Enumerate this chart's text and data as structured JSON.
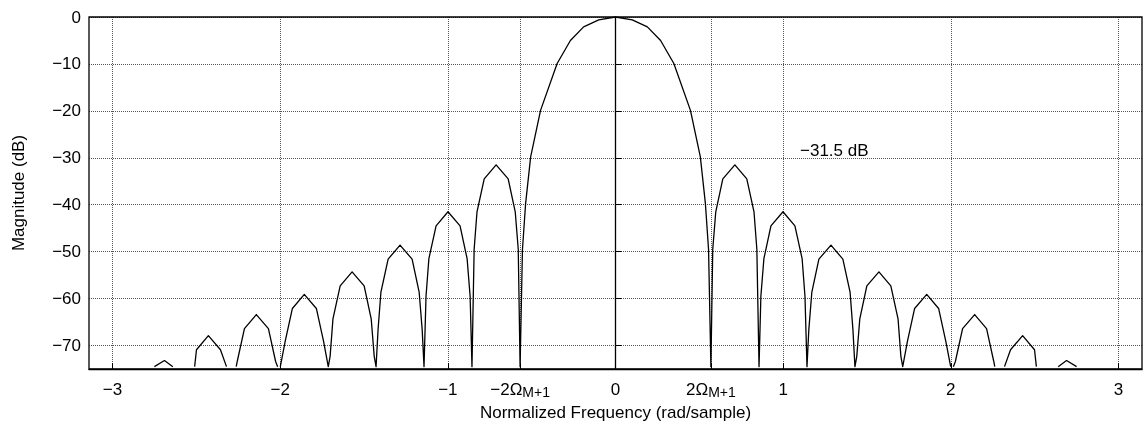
{
  "chart_data": {
    "type": "line",
    "xlabel": "Normalized Frequency (rad/sample)",
    "ylabel": "Magnitude (dB)",
    "annotations": [
      "−31.5 dB"
    ],
    "x": [
      -2.75,
      -2.69,
      -2.64,
      -2.575,
      -2.51,
      -2.499,
      -2.428,
      -2.356,
      -2.32,
      -2.291,
      -2.262,
      -2.256,
      -2.213,
      -2.142,
      -2.07,
      -2.027,
      -2.015,
      -2.007,
      -1.999,
      -1.97,
      -1.927,
      -1.856,
      -1.784,
      -1.741,
      -1.713,
      -1.702,
      -1.685,
      -1.642,
      -1.571,
      -1.499,
      -1.457,
      -1.439,
      -1.428,
      -1.416,
      -1.399,
      -1.356,
      -1.285,
      -1.213,
      -1.171,
      -1.153,
      -1.142,
      -1.13,
      -1.113,
      -1.07,
      -0.999,
      -0.927,
      -0.885,
      -0.867,
      -0.856,
      -0.843,
      -0.826,
      -0.783,
      -0.712,
      -0.64,
      -0.598,
      -0.58,
      -0.569,
      -0.555,
      -0.536,
      -0.506,
      -0.447,
      -0.348,
      -0.269,
      -0.19,
      -0.1,
      0,
      0.1,
      0.19,
      0.269,
      0.348,
      0.447,
      0.506,
      0.536,
      0.555,
      0.569,
      0.58,
      0.598,
      0.64,
      0.712,
      0.783,
      0.826,
      0.843,
      0.856,
      0.867,
      0.885,
      0.927,
      0.999,
      1.07,
      1.113,
      1.13,
      1.142,
      1.153,
      1.171,
      1.213,
      1.285,
      1.356,
      1.399,
      1.416,
      1.428,
      1.439,
      1.457,
      1.499,
      1.571,
      1.642,
      1.685,
      1.702,
      1.713,
      1.741,
      1.784,
      1.856,
      1.927,
      1.97,
      1.999,
      2.007,
      2.015,
      2.027,
      2.07,
      2.142,
      2.213,
      2.256,
      2.262,
      2.291,
      2.32,
      2.356,
      2.428,
      2.499,
      2.51,
      2.575,
      2.64,
      2.69,
      2.75
    ],
    "values": [
      -74.5,
      -73.2,
      -74.5,
      null,
      -74.5,
      -70.9,
      -67.9,
      -70.9,
      -74.5,
      null,
      -74.5,
      -73.4,
      -66.4,
      -63.4,
      -66.4,
      -73.4,
      -74.5,
      null,
      -74.5,
      -69.1,
      -62.1,
      -59.1,
      -62.1,
      -69.1,
      -74.5,
      -72.3,
      -64.3,
      -57.3,
      -54.3,
      -57.3,
      -64.3,
      -72.3,
      -74.5,
      -66.6,
      -58.6,
      -51.6,
      -48.6,
      -51.6,
      -58.6,
      -66.6,
      -74.5,
      -59.5,
      -51.5,
      -44.5,
      -41.5,
      -44.5,
      -51.5,
      -59.5,
      -74.5,
      -49.5,
      -41.5,
      -34.5,
      -31.5,
      -34.5,
      -41.5,
      -49.5,
      -74.5,
      -49.6,
      -39.7,
      -29.8,
      -19.9,
      -9.9,
      -5.0,
      -2.1,
      -0.6,
      0,
      -0.6,
      -2.1,
      -5.0,
      -9.9,
      -19.9,
      -29.8,
      -39.7,
      -49.6,
      -74.5,
      -49.5,
      -41.5,
      -34.5,
      -31.5,
      -34.5,
      -41.5,
      -49.5,
      -74.5,
      -59.5,
      -51.5,
      -44.5,
      -41.5,
      -44.5,
      -51.5,
      -59.5,
      -74.5,
      -66.6,
      -58.6,
      -51.6,
      -48.6,
      -51.6,
      -58.6,
      -66.6,
      -74.5,
      -72.3,
      -64.3,
      -57.3,
      -54.3,
      -57.3,
      -64.3,
      -72.3,
      -74.5,
      -69.1,
      -62.1,
      -59.1,
      -62.1,
      -69.1,
      -74.5,
      null,
      -74.5,
      -73.4,
      -66.4,
      -63.4,
      -66.4,
      -73.4,
      -74.5,
      null,
      -74.5,
      -70.9,
      -67.9,
      -70.9,
      -74.5,
      null,
      -74.5,
      -73.2,
      -74.5
    ],
    "color": "#000000",
    "xlim": [
      -3.14,
      3.14
    ],
    "ylim": [
      -75,
      0
    ],
    "xticks": [
      {
        "value": -3,
        "label": "−3"
      },
      {
        "value": -2,
        "label": "−2"
      },
      {
        "value": -1,
        "label": "−1"
      },
      {
        "value": -0.569,
        "label": "−2Ω$_{M+1}$"
      },
      0,
      {
        "value": 0.569,
        "label": "2Ω$_{M+1}$"
      },
      1,
      2,
      3
    ],
    "yticks": [
      0,
      {
        "value": -10,
        "label": "−10"
      },
      {
        "value": -20,
        "label": "−20"
      },
      {
        "value": -30,
        "label": "−30"
      },
      {
        "value": -40,
        "label": "−40"
      },
      {
        "value": -50,
        "label": "−50"
      },
      {
        "value": -60,
        "label": "−60"
      },
      {
        "value": -70,
        "label": "−70"
      }
    ],
    "grid": true,
    "marker": "none",
    "line_style": "solid"
  }
}
